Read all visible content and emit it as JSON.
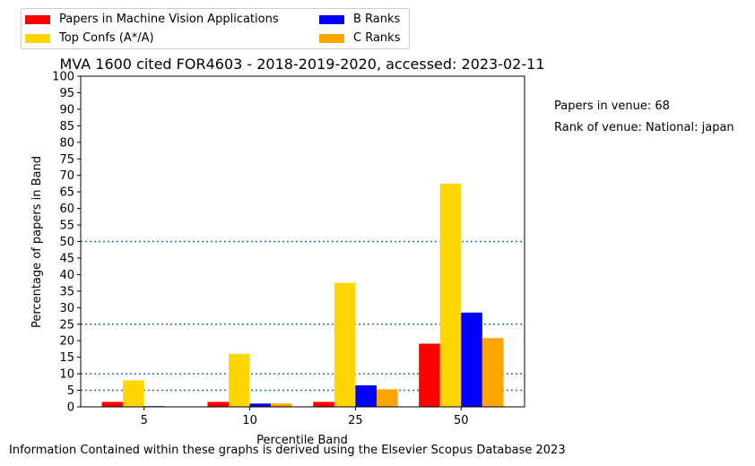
{
  "chart_data": {
    "type": "bar",
    "title": "MVA 1600 cited FOR4603 - 2018-2019-2020, accessed: 2023-02-11",
    "xlabel": "Percentile Band",
    "ylabel": "Percentage of papers in Band",
    "categories": [
      "5",
      "10",
      "25",
      "50"
    ],
    "ylim": [
      0,
      100
    ],
    "yticks": [
      0,
      5,
      10,
      15,
      20,
      25,
      30,
      35,
      40,
      45,
      50,
      55,
      60,
      65,
      70,
      75,
      80,
      85,
      90,
      95,
      100
    ],
    "reference_lines": [
      5,
      10,
      25,
      50
    ],
    "grid": false,
    "legend_position": "top-left",
    "series": [
      {
        "name": "Papers in Machine Vision Applications",
        "color": "#ff0000",
        "values": [
          1.5,
          1.5,
          1.5,
          19.1
        ]
      },
      {
        "name": "Top Confs (A*/A)",
        "color": "#ffd700",
        "values": [
          8.0,
          16.0,
          37.5,
          67.5
        ]
      },
      {
        "name": "B Ranks",
        "color": "#0000ff",
        "values": [
          0.2,
          1.0,
          6.5,
          28.5
        ]
      },
      {
        "name": "C Ranks",
        "color": "#ffa500",
        "values": [
          0.1,
          1.0,
          5.3,
          20.8
        ]
      }
    ]
  },
  "side_notes": {
    "papers_in_venue": "Papers in venue: 68",
    "rank_of_venue": "Rank of venue: National: japan"
  },
  "footer": "Information Contained within these graphs is derived using the Elsevier Scopus Database 2023"
}
